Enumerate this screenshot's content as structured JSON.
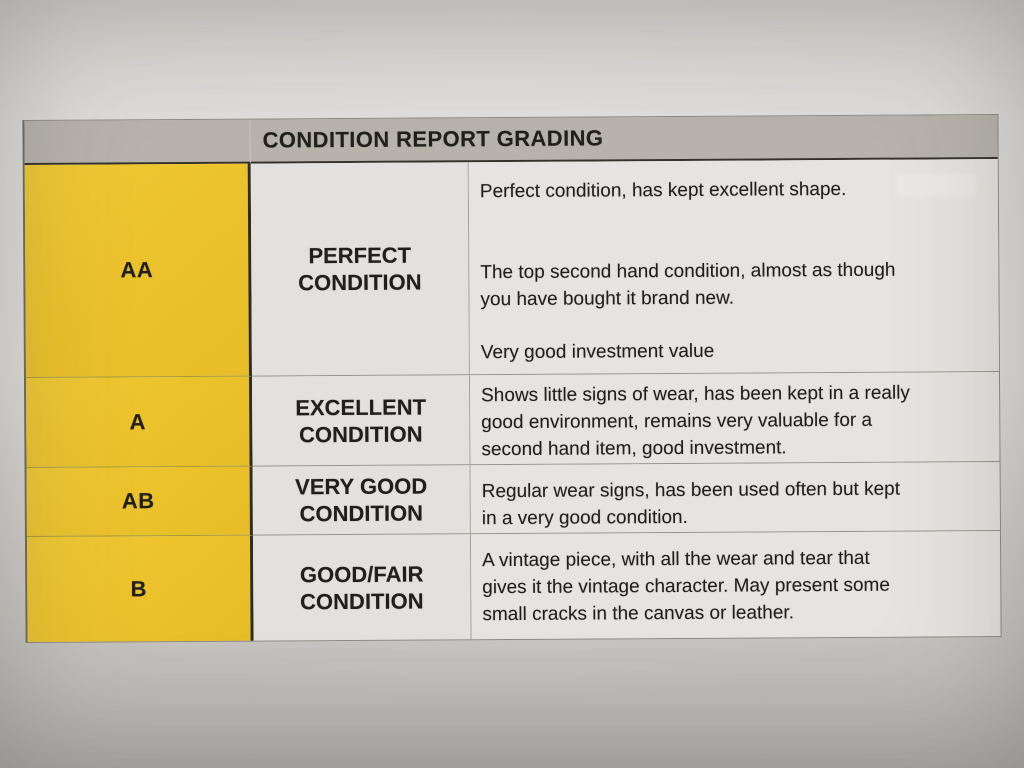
{
  "colors": {
    "grade_yellow": "#ecc32d",
    "header_gray": "#b7b3ac",
    "cell_bg": "#e3e1dd",
    "desc_bg": "#e6e4e0"
  },
  "table": {
    "title": "CONDITION REPORT GRADING",
    "rows": [
      {
        "grade": "AA",
        "label_lines": [
          "PERFECT",
          "CONDITION"
        ],
        "paragraphs": [
          [
            "Perfect condition, has kept excellent shape."
          ],
          [
            "The top second hand condition, almost as though",
            "you have bought it brand new."
          ],
          [
            "Very good investment value"
          ]
        ]
      },
      {
        "grade": "A",
        "label_lines": [
          "EXCELLENT",
          "CONDITION"
        ],
        "paragraphs": [
          [
            "Shows little signs of wear, has been kept in a really",
            "good environment, remains very valuable for a",
            "second hand item, good investment."
          ]
        ]
      },
      {
        "grade": "AB",
        "label_lines": [
          "VERY GOOD",
          "CONDITION"
        ],
        "paragraphs": [
          [
            "Regular wear signs, has been used often but kept",
            "in a very good condition."
          ]
        ]
      },
      {
        "grade": "B",
        "label_lines": [
          "GOOD/FAIR",
          "CONDITION"
        ],
        "paragraphs": [
          [
            "A vintage piece, with all the wear and tear that",
            "gives it the vintage character. May present some",
            "small cracks in the canvas or leather."
          ]
        ]
      }
    ]
  }
}
